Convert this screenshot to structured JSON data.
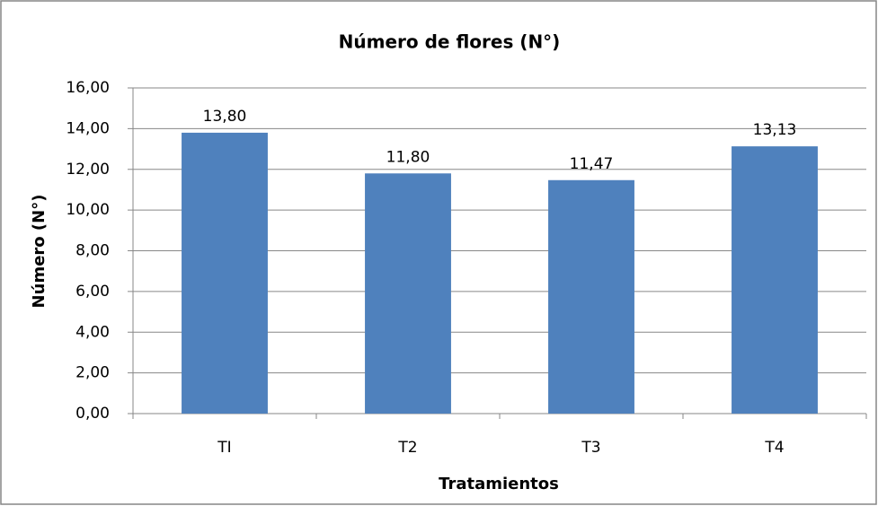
{
  "chart_data": {
    "type": "bar",
    "title": "Número de flores (N°)",
    "x_label": "Tratamientos",
    "y_label": "Número (N°)",
    "categories": [
      "TI",
      "T2",
      "T3",
      "T4"
    ],
    "values": [
      13.8,
      11.8,
      11.47,
      13.13
    ],
    "value_labels": [
      "13,80",
      "11,80",
      "11,47",
      "13,13"
    ],
    "color": "#4f81bd",
    "ylim": [
      0,
      16
    ],
    "yticks": [
      {
        "value": 0,
        "label": "0,00"
      },
      {
        "value": 2,
        "label": "2,00"
      },
      {
        "value": 4,
        "label": "4,00"
      },
      {
        "value": 6,
        "label": "6,00"
      },
      {
        "value": 8,
        "label": "8,00"
      },
      {
        "value": 10,
        "label": "10,00"
      },
      {
        "value": 12,
        "label": "12,00"
      },
      {
        "value": 14,
        "label": "14,00"
      },
      {
        "value": 16,
        "label": "16,00"
      }
    ],
    "grid": true
  }
}
